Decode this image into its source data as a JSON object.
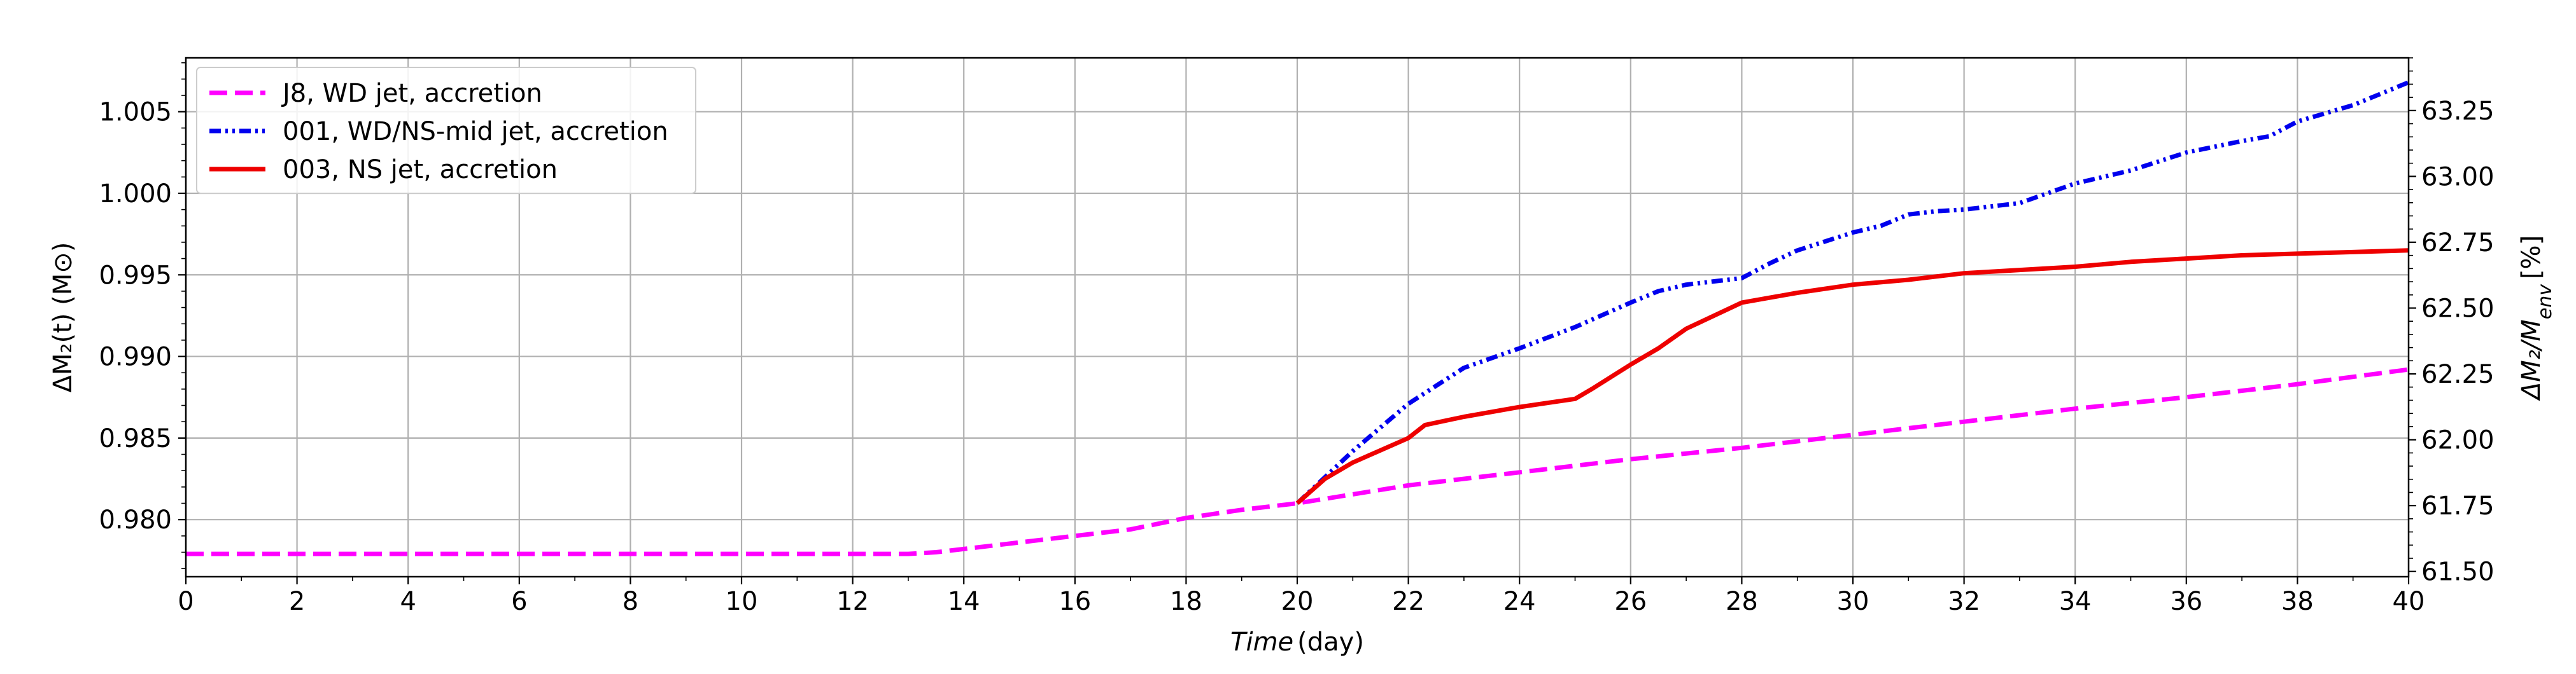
{
  "chart_data": {
    "type": "line",
    "xlabel_italic": "Time",
    "xlabel_unit": "(day)",
    "ylabel": "ΔM₂(t) (M⊙)",
    "ylabel2_italic": "ΔM₂/M",
    "ylabel2_sub": "env",
    "ylabel2_unit": "[%]",
    "xlim": [
      0,
      40
    ],
    "ylim": [
      0.9765,
      1.0083
    ],
    "ylim2": [
      61.48,
      63.45
    ],
    "grid": true,
    "legend_position": "upper-left",
    "x_ticks": [
      0,
      2,
      4,
      6,
      8,
      10,
      12,
      14,
      16,
      18,
      20,
      22,
      24,
      26,
      28,
      30,
      32,
      34,
      36,
      38,
      40
    ],
    "x_tick_labels": [
      "0",
      "2",
      "4",
      "6",
      "8",
      "10",
      "12",
      "14",
      "16",
      "18",
      "20",
      "22",
      "24",
      "26",
      "28",
      "30",
      "32",
      "34",
      "36",
      "38",
      "40"
    ],
    "y_ticks": [
      0.98,
      0.985,
      0.99,
      0.995,
      1.0,
      1.005
    ],
    "y_tick_labels": [
      "0.980",
      "0.985",
      "0.990",
      "0.995",
      "1.000",
      "1.005"
    ],
    "y2_ticks": [
      61.5,
      61.75,
      62.0,
      62.25,
      62.5,
      62.75,
      63.0,
      63.25
    ],
    "y2_tick_labels": [
      "61.50",
      "61.75",
      "62.00",
      "62.25",
      "62.50",
      "62.75",
      "63.00",
      "63.25"
    ],
    "series": [
      {
        "name": "J8, WD jet, accretion",
        "color": "#ff00ff",
        "style": "dashed",
        "x": [
          0,
          12,
          13,
          13.5,
          14,
          15,
          16,
          17,
          18,
          19,
          20,
          22,
          24,
          26,
          28,
          30,
          32,
          34,
          36,
          37,
          38,
          40
        ],
        "y": [
          0.9779,
          0.9779,
          0.9779,
          0.978,
          0.9782,
          0.9786,
          0.979,
          0.9794,
          0.9801,
          0.9806,
          0.981,
          0.9821,
          0.9829,
          0.9837,
          0.9844,
          0.9852,
          0.986,
          0.9868,
          0.9875,
          0.9879,
          0.9883,
          0.9892
        ]
      },
      {
        "name": "001, WD/NS-mid jet, accretion",
        "color": "#0000ee",
        "style": "dashdotdot",
        "x": [
          20,
          21,
          22,
          23,
          24,
          25,
          26,
          26.5,
          27,
          28,
          28.5,
          29,
          30,
          30.5,
          31,
          31.5,
          32,
          33,
          34,
          35,
          36,
          37,
          37.5,
          38,
          39,
          40
        ],
        "y": [
          0.981,
          0.9842,
          0.9871,
          0.9893,
          0.9905,
          0.9918,
          0.9933,
          0.994,
          0.9944,
          0.9948,
          0.9957,
          0.9965,
          0.9976,
          0.998,
          0.9987,
          0.9989,
          0.999,
          0.9994,
          1.0006,
          1.0014,
          1.0025,
          1.0032,
          1.0035,
          1.0044,
          1.0054,
          1.0068
        ]
      },
      {
        "name": "003, NS jet, accretion",
        "color": "#ee0000",
        "style": "solid",
        "x": [
          20,
          20.5,
          21,
          22,
          22.3,
          23,
          24,
          25,
          25.3,
          26,
          26.5,
          27,
          28,
          28.5,
          29,
          30,
          31,
          32,
          33,
          34,
          35,
          36,
          37,
          38,
          39,
          40
        ],
        "y": [
          0.981,
          0.9825,
          0.9835,
          0.985,
          0.9858,
          0.9863,
          0.9869,
          0.9874,
          0.988,
          0.9895,
          0.9905,
          0.9917,
          0.9933,
          0.9936,
          0.9939,
          0.9944,
          0.9947,
          0.9951,
          0.9953,
          0.9955,
          0.9958,
          0.996,
          0.9962,
          0.9963,
          0.9964,
          0.9965
        ]
      }
    ]
  }
}
